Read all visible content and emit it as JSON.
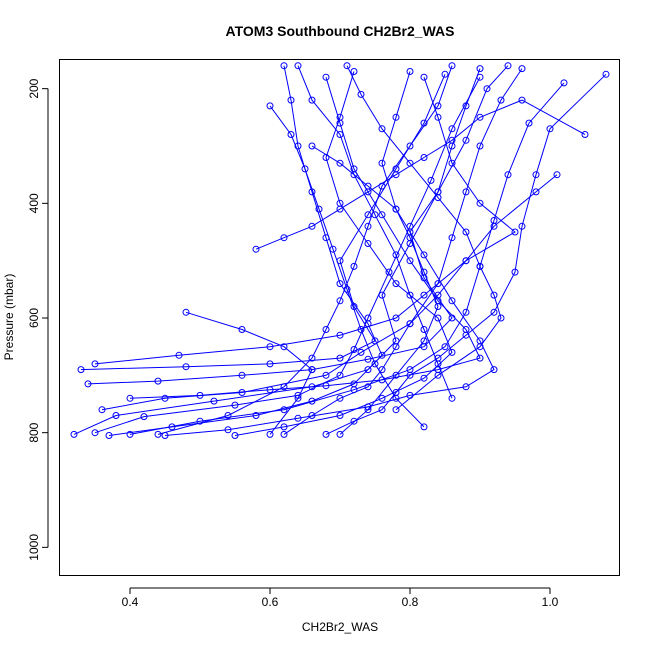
{
  "chart_data": {
    "type": "line",
    "title": "ATOM3 Southbound CH2Br2_WAS",
    "xlabel": "CH2Br2_WAS",
    "ylabel": "Pressure (mbar)",
    "xlim": [
      0.3,
      1.1
    ],
    "ylim": [
      1050,
      150
    ],
    "y_reversed": true,
    "grid": false,
    "legend": "none",
    "markers": "open-circle",
    "color": "#0000ff",
    "x_ticks": [
      0.4,
      0.6,
      0.8,
      1.0
    ],
    "x_tick_labels": [
      "0.4",
      "0.6",
      "0.8",
      "1.0"
    ],
    "y_ticks": [
      200,
      400,
      600,
      800,
      1000
    ],
    "y_tick_labels": [
      "200",
      "400",
      "600",
      "800",
      "1000"
    ],
    "series": [
      {
        "points": [
          [
            0.32,
            803
          ],
          [
            0.38,
            770
          ],
          [
            0.52,
            745
          ],
          [
            0.66,
            720
          ],
          [
            0.74,
            690
          ],
          [
            0.78,
            640
          ],
          [
            0.76,
            560
          ],
          [
            0.8,
            470
          ],
          [
            0.84,
            380
          ],
          [
            0.88,
            290
          ],
          [
            0.91,
            200
          ],
          [
            0.94,
            160
          ]
        ]
      },
      {
        "points": [
          [
            0.35,
            800
          ],
          [
            0.42,
            772
          ],
          [
            0.55,
            752
          ],
          [
            0.64,
            735
          ],
          [
            0.7,
            700
          ],
          [
            0.72,
            655
          ],
          [
            0.74,
            600
          ],
          [
            0.77,
            520
          ],
          [
            0.8,
            440
          ],
          [
            0.83,
            360
          ],
          [
            0.86,
            270
          ],
          [
            0.9,
            180
          ]
        ]
      },
      {
        "points": [
          [
            0.33,
            690
          ],
          [
            0.48,
            685
          ],
          [
            0.6,
            680
          ],
          [
            0.7,
            670
          ],
          [
            0.75,
            640
          ],
          [
            0.72,
            580
          ],
          [
            0.7,
            500
          ],
          [
            0.74,
            420
          ],
          [
            0.78,
            340
          ],
          [
            0.82,
            260
          ],
          [
            0.85,
            175
          ]
        ]
      },
      {
        "points": [
          [
            0.36,
            760
          ],
          [
            0.45,
            740
          ],
          [
            0.56,
            730
          ],
          [
            0.68,
            700
          ],
          [
            0.73,
            660
          ],
          [
            0.8,
            610
          ],
          [
            0.84,
            540
          ],
          [
            0.86,
            460
          ],
          [
            0.88,
            380
          ],
          [
            0.9,
            300
          ],
          [
            0.93,
            220
          ],
          [
            0.96,
            165
          ]
        ]
      },
      {
        "points": [
          [
            0.4,
            803
          ],
          [
            0.5,
            780
          ],
          [
            0.62,
            760
          ],
          [
            0.72,
            725
          ],
          [
            0.8,
            690
          ],
          [
            0.85,
            650
          ],
          [
            0.88,
            590
          ],
          [
            0.9,
            510
          ],
          [
            0.92,
            430
          ],
          [
            0.94,
            350
          ],
          [
            0.97,
            260
          ],
          [
            1.02,
            190
          ]
        ]
      },
      {
        "points": [
          [
            0.48,
            590
          ],
          [
            0.56,
            620
          ],
          [
            0.62,
            650
          ],
          [
            0.66,
            690
          ],
          [
            0.64,
            740
          ],
          [
            0.6,
            803
          ]
        ]
      },
      {
        "points": [
          [
            0.37,
            805
          ],
          [
            0.46,
            790
          ],
          [
            0.58,
            770
          ],
          [
            0.66,
            745
          ],
          [
            0.72,
            715
          ],
          [
            0.76,
            665
          ],
          [
            0.74,
            610
          ],
          [
            0.7,
            540
          ],
          [
            0.68,
            460
          ],
          [
            0.66,
            380
          ],
          [
            0.64,
            300
          ],
          [
            0.63,
            220
          ],
          [
            0.62,
            160
          ]
        ]
      },
      {
        "points": [
          [
            0.34,
            715
          ],
          [
            0.44,
            710
          ],
          [
            0.56,
            700
          ],
          [
            0.66,
            690
          ],
          [
            0.74,
            672
          ],
          [
            0.82,
            650
          ],
          [
            0.86,
            600
          ],
          [
            0.82,
            530
          ],
          [
            0.8,
            450
          ],
          [
            0.84,
            380
          ],
          [
            0.86,
            300
          ],
          [
            0.88,
            230
          ],
          [
            0.9,
            165
          ]
        ]
      },
      {
        "points": [
          [
            0.55,
            805
          ],
          [
            0.62,
            790
          ],
          [
            0.7,
            770
          ],
          [
            0.76,
            740
          ],
          [
            0.82,
            705
          ],
          [
            0.86,
            660
          ],
          [
            0.84,
            600
          ],
          [
            0.78,
            540
          ],
          [
            0.74,
            470
          ],
          [
            0.7,
            400
          ],
          [
            0.68,
            320
          ],
          [
            0.7,
            250
          ],
          [
            0.72,
            170
          ]
        ]
      },
      {
        "points": [
          [
            0.35,
            680
          ],
          [
            0.47,
            665
          ],
          [
            0.6,
            650
          ],
          [
            0.7,
            630
          ],
          [
            0.78,
            600
          ],
          [
            0.82,
            560
          ],
          [
            0.88,
            500
          ],
          [
            0.95,
            450
          ],
          [
            0.9,
            400
          ],
          [
            0.86,
            330
          ],
          [
            0.84,
            250
          ],
          [
            0.82,
            180
          ]
        ]
      },
      {
        "points": [
          [
            0.45,
            805
          ],
          [
            0.54,
            795
          ],
          [
            0.64,
            775
          ],
          [
            0.74,
            755
          ],
          [
            0.8,
            735
          ],
          [
            0.88,
            720
          ],
          [
            0.92,
            690
          ],
          [
            0.9,
            640
          ],
          [
            0.86,
            570
          ],
          [
            0.82,
            490
          ],
          [
            0.78,
            410
          ],
          [
            0.76,
            330
          ],
          [
            0.78,
            250
          ],
          [
            0.8,
            170
          ]
        ]
      },
      {
        "points": [
          [
            0.58,
            480
          ],
          [
            0.62,
            460
          ],
          [
            0.66,
            440
          ],
          [
            0.7,
            410
          ],
          [
            0.74,
            380
          ],
          [
            0.78,
            350
          ],
          [
            0.82,
            320
          ],
          [
            0.86,
            290
          ],
          [
            0.9,
            250
          ],
          [
            0.96,
            220
          ],
          [
            1.05,
            280
          ]
        ]
      },
      {
        "points": [
          [
            0.68,
            803
          ],
          [
            0.72,
            780
          ],
          [
            0.76,
            760
          ],
          [
            0.78,
            730
          ],
          [
            0.8,
            700
          ],
          [
            0.84,
            670
          ],
          [
            0.88,
            630
          ],
          [
            0.92,
            590
          ],
          [
            0.95,
            520
          ],
          [
            0.96,
            440
          ],
          [
            0.98,
            350
          ],
          [
            1.0,
            270
          ],
          [
            1.08,
            175
          ]
        ]
      },
      {
        "points": [
          [
            0.6,
            230
          ],
          [
            0.63,
            280
          ],
          [
            0.65,
            340
          ],
          [
            0.67,
            410
          ],
          [
            0.69,
            480
          ],
          [
            0.71,
            550
          ],
          [
            0.73,
            620
          ],
          [
            0.75,
            680
          ],
          [
            0.78,
            740
          ],
          [
            0.82,
            790
          ]
        ]
      },
      {
        "points": [
          [
            0.64,
            160
          ],
          [
            0.66,
            220
          ],
          [
            0.7,
            280
          ],
          [
            0.72,
            350
          ],
          [
            0.75,
            420
          ],
          [
            0.78,
            490
          ],
          [
            0.8,
            560
          ],
          [
            0.82,
            620
          ],
          [
            0.84,
            680
          ],
          [
            0.86,
            740
          ]
        ]
      },
      {
        "points": [
          [
            0.62,
            803
          ],
          [
            0.66,
            770
          ],
          [
            0.7,
            740
          ],
          [
            0.74,
            720
          ],
          [
            0.76,
            690
          ],
          [
            0.78,
            650
          ],
          [
            0.8,
            610
          ],
          [
            0.84,
            560
          ],
          [
            0.88,
            500
          ],
          [
            0.92,
            440
          ],
          [
            0.98,
            380
          ],
          [
            1.01,
            350
          ]
        ]
      },
      {
        "points": [
          [
            0.4,
            740
          ],
          [
            0.5,
            735
          ],
          [
            0.6,
            725
          ],
          [
            0.68,
            718
          ],
          [
            0.76,
            708
          ],
          [
            0.84,
            690
          ],
          [
            0.9,
            670
          ],
          [
            0.88,
            620
          ],
          [
            0.84,
            570
          ],
          [
            0.8,
            500
          ],
          [
            0.76,
            420
          ],
          [
            0.72,
            340
          ],
          [
            0.7,
            260
          ],
          [
            0.68,
            180
          ]
        ]
      },
      {
        "points": [
          [
            0.66,
            300
          ],
          [
            0.7,
            330
          ],
          [
            0.74,
            370
          ],
          [
            0.78,
            410
          ],
          [
            0.8,
            460
          ],
          [
            0.82,
            520
          ],
          [
            0.84,
            580
          ],
          [
            0.82,
            640
          ],
          [
            0.78,
            700
          ],
          [
            0.74,
            760
          ],
          [
            0.7,
            803
          ]
        ]
      },
      {
        "points": [
          [
            0.86,
            160
          ],
          [
            0.84,
            230
          ],
          [
            0.8,
            300
          ],
          [
            0.76,
            370
          ],
          [
            0.74,
            440
          ],
          [
            0.72,
            510
          ],
          [
            0.7,
            570
          ],
          [
            0.68,
            620
          ],
          [
            0.66,
            670
          ],
          [
            0.62,
            720
          ],
          [
            0.54,
            770
          ],
          [
            0.44,
            803
          ]
        ]
      },
      {
        "points": [
          [
            0.71,
            160
          ],
          [
            0.73,
            210
          ],
          [
            0.76,
            270
          ],
          [
            0.8,
            330
          ],
          [
            0.84,
            390
          ],
          [
            0.88,
            450
          ],
          [
            0.9,
            510
          ],
          [
            0.92,
            560
          ],
          [
            0.93,
            600
          ],
          [
            0.9,
            650
          ],
          [
            0.84,
            700
          ],
          [
            0.78,
            760
          ]
        ]
      }
    ]
  }
}
